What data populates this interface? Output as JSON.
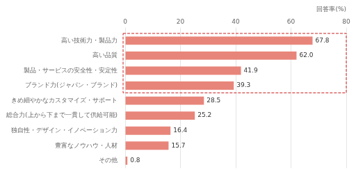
{
  "chart_data": {
    "type": "bar",
    "orientation": "horizontal",
    "categories": [
      "その他",
      "豊富なノウハウ・人材",
      "独自性・デザイン・イノベーション力",
      "総合力(上から下まで一貫して供給可能)",
      "きめ細やかなカスタマイズ・サポート",
      "ブランド力(ジャパン・ブランド)",
      "製品・サービスの安全性・安定性",
      "高い品質",
      "高い技術力・製品力"
    ],
    "values": [
      0.8,
      15.7,
      16.4,
      25.2,
      28.5,
      39.3,
      41.9,
      62.0,
      67.8
    ],
    "value_labels": [
      "0.8",
      "15.7",
      "16.4",
      "25.2",
      "28.5",
      "39.3",
      "41.9",
      "62.0",
      "67.8"
    ],
    "data_labels": true,
    "color": "#E8857A",
    "highlighted": [
      false,
      false,
      false,
      false,
      false,
      true,
      true,
      true,
      true
    ],
    "highlight_color": "#CC2222",
    "xlabel": "回答率(%)",
    "xlim": [
      0,
      80
    ],
    "xticks": [
      0,
      20,
      40,
      60,
      80
    ],
    "grid": true
  }
}
